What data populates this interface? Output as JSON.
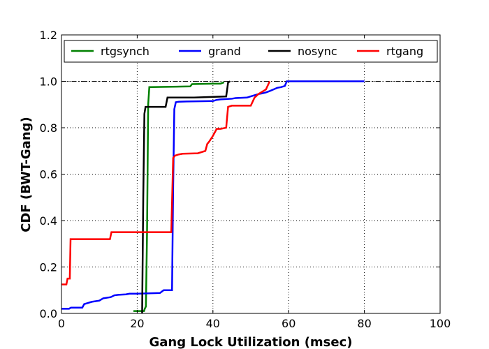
{
  "chart_data": {
    "type": "line",
    "title": "",
    "xlabel": "Gang Lock Utilization (msec)",
    "ylabel": "CDF (BWT-Gang)",
    "xlim": [
      0,
      100
    ],
    "ylim": [
      0,
      1.2
    ],
    "xticks": [
      0,
      20,
      40,
      60,
      80,
      100
    ],
    "yticks": [
      0.0,
      0.2,
      0.4,
      0.6,
      0.8,
      1.0,
      1.2
    ],
    "xtick_labels": [
      "0",
      "20",
      "40",
      "60",
      "80",
      "100"
    ],
    "ytick_labels": [
      "0.0",
      "0.2",
      "0.4",
      "0.6",
      "0.8",
      "1.0",
      "1.2"
    ],
    "grid": true,
    "grid_style": "dotted",
    "reference_line": {
      "y": 1.0,
      "style": "dash-dot",
      "color": "#000000"
    },
    "legend": {
      "placement": "top",
      "columns": 4
    },
    "series": [
      {
        "name": "rtgsynch",
        "color": "#008000",
        "x": [
          19,
          21.8,
          22.0,
          22.3,
          22.6,
          22.9,
          23.2,
          23.6,
          34,
          34.5,
          40,
          42,
          42.8,
          43.0
        ],
        "y": [
          0.01,
          0.01,
          0.02,
          0.03,
          0.35,
          0.9,
          0.975,
          0.975,
          0.978,
          0.988,
          0.99,
          0.99,
          0.995,
          0.995
        ]
      },
      {
        "name": "grand",
        "color": "#0000ff",
        "x": [
          0,
          2,
          2.5,
          5.5,
          6,
          7,
          8,
          10,
          11,
          13,
          14,
          15,
          17,
          18,
          20,
          26,
          27,
          29.2,
          29.5,
          29.8,
          30.2,
          31,
          33,
          40,
          41,
          42,
          45,
          46,
          49,
          50,
          51,
          52,
          53,
          54,
          55,
          56,
          57,
          58,
          59,
          59.5,
          80
        ],
        "y": [
          0.02,
          0.02,
          0.025,
          0.025,
          0.04,
          0.045,
          0.05,
          0.055,
          0.065,
          0.07,
          0.078,
          0.08,
          0.082,
          0.085,
          0.085,
          0.088,
          0.1,
          0.1,
          0.55,
          0.88,
          0.91,
          0.912,
          0.913,
          0.915,
          0.92,
          0.922,
          0.925,
          0.928,
          0.93,
          0.935,
          0.94,
          0.945,
          0.948,
          0.952,
          0.958,
          0.965,
          0.972,
          0.975,
          0.98,
          1.0,
          1.0
        ]
      },
      {
        "name": "nosync",
        "color": "#000000",
        "x": [
          21.3,
          21.6,
          21.9,
          22.2,
          27.5,
          28,
          35,
          43.5,
          43.8,
          44,
          44.5
        ],
        "y": [
          0.0,
          0.5,
          0.86,
          0.89,
          0.89,
          0.93,
          0.93,
          0.935,
          0.97,
          0.995,
          1.0
        ]
      },
      {
        "name": "rtgang",
        "color": "#ff0000",
        "x": [
          0,
          1.3,
          1.6,
          2.2,
          2.4,
          8,
          12.8,
          13.2,
          20,
          29,
          29.5,
          30,
          31,
          32,
          36,
          38,
          38.5,
          39,
          40,
          40.5,
          41,
          42,
          43.5,
          44,
          45,
          50,
          51,
          52,
          53,
          54,
          55
        ],
        "y": [
          0.125,
          0.125,
          0.15,
          0.15,
          0.32,
          0.32,
          0.32,
          0.35,
          0.35,
          0.35,
          0.67,
          0.68,
          0.685,
          0.688,
          0.69,
          0.7,
          0.73,
          0.74,
          0.765,
          0.78,
          0.795,
          0.795,
          0.8,
          0.89,
          0.895,
          0.895,
          0.93,
          0.945,
          0.955,
          0.965,
          1.0
        ]
      }
    ]
  }
}
